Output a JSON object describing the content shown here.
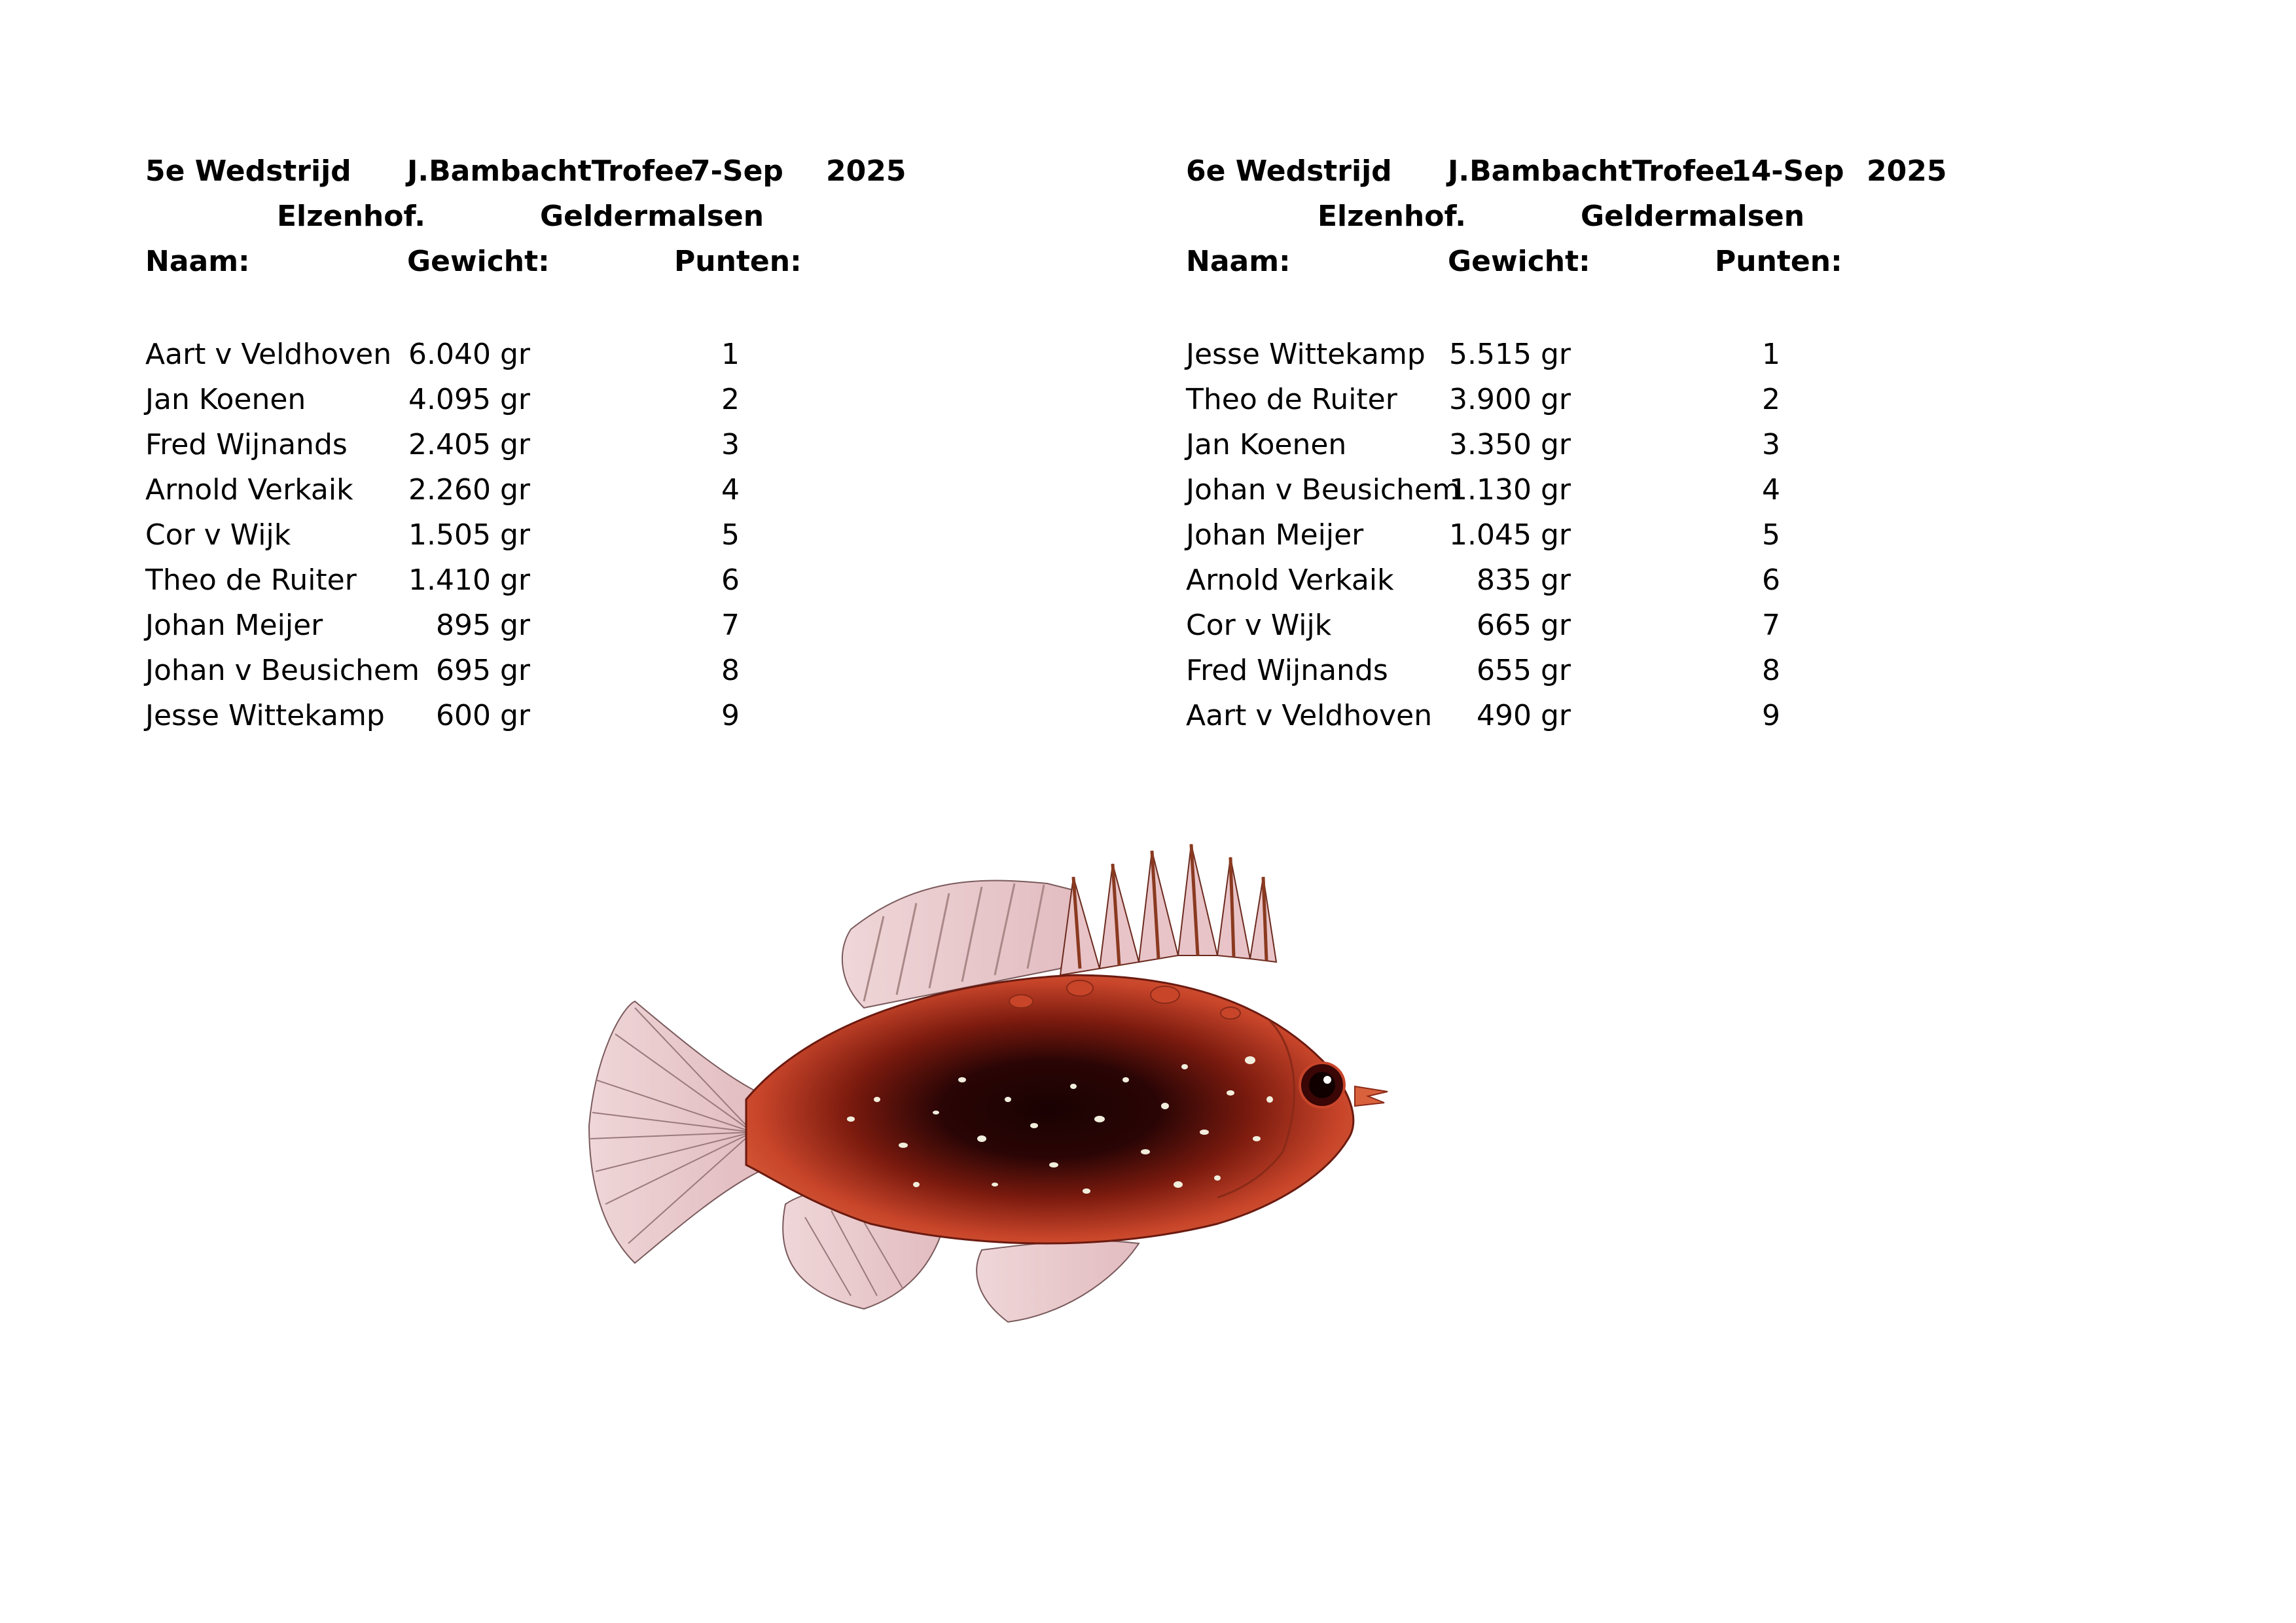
{
  "sheets": [
    {
      "title": "5e Wedstrijd",
      "trophy": "J.BambachtTrofee",
      "date": "7-Sep",
      "year": "2025",
      "location": "Elzenhof.",
      "city": "Geldermalsen",
      "headers": {
        "name": "Naam:",
        "weight": "Gewicht:",
        "points": "Punten:"
      },
      "rows": [
        {
          "name": "Aart v Veldhoven",
          "weight": "6.040 gr",
          "points": "1"
        },
        {
          "name": "Jan Koenen",
          "weight": "4.095 gr",
          "points": "2"
        },
        {
          "name": "Fred Wijnands",
          "weight": "2.405 gr",
          "points": "3"
        },
        {
          "name": "Arnold Verkaik",
          "weight": "2.260 gr",
          "points": "4"
        },
        {
          "name": "Cor v Wijk",
          "weight": "1.505 gr",
          "points": "5"
        },
        {
          "name": "Theo de Ruiter",
          "weight": "1.410 gr",
          "points": "6"
        },
        {
          "name": "Johan Meijer",
          "weight": "895 gr",
          "points": "7"
        },
        {
          "name": "Johan v Beusichem",
          "weight": "695 gr",
          "points": "8"
        },
        {
          "name": "Jesse Wittekamp",
          "weight": "600 gr",
          "points": "9"
        }
      ]
    },
    {
      "title": "6e Wedstrijd",
      "trophy": "J.BambachtTrofee",
      "date": "14-Sep",
      "year": "2025",
      "location": "Elzenhof.",
      "city": "Geldermalsen",
      "headers": {
        "name": "Naam:",
        "weight": "Gewicht:",
        "points": "Punten:"
      },
      "rows": [
        {
          "name": "Jesse Wittekamp",
          "weight": "5.515 gr",
          "points": "1"
        },
        {
          "name": "Theo de Ruiter",
          "weight": "3.900 gr",
          "points": "2"
        },
        {
          "name": "Jan Koenen",
          "weight": "3.350 gr",
          "points": "3"
        },
        {
          "name": "Johan v Beusichem",
          "weight": "1.130 gr",
          "points": "4"
        },
        {
          "name": "Johan Meijer",
          "weight": "1.045 gr",
          "points": "5"
        },
        {
          "name": "Arnold Verkaik",
          "weight": "835 gr",
          "points": "6"
        },
        {
          "name": "Cor v Wijk",
          "weight": "665 gr",
          "points": "7"
        },
        {
          "name": "Fred Wijnands",
          "weight": "655 gr",
          "points": "8"
        },
        {
          "name": "Aart v Veldhoven",
          "weight": "490 gr",
          "points": "9"
        }
      ]
    }
  ],
  "illustration": {
    "icon": "fish-illustration",
    "colors": {
      "body": "#c8452a",
      "stripe": "#2a0505",
      "fin": "#e8c4c8",
      "spot": "#f2eedd"
    }
  }
}
